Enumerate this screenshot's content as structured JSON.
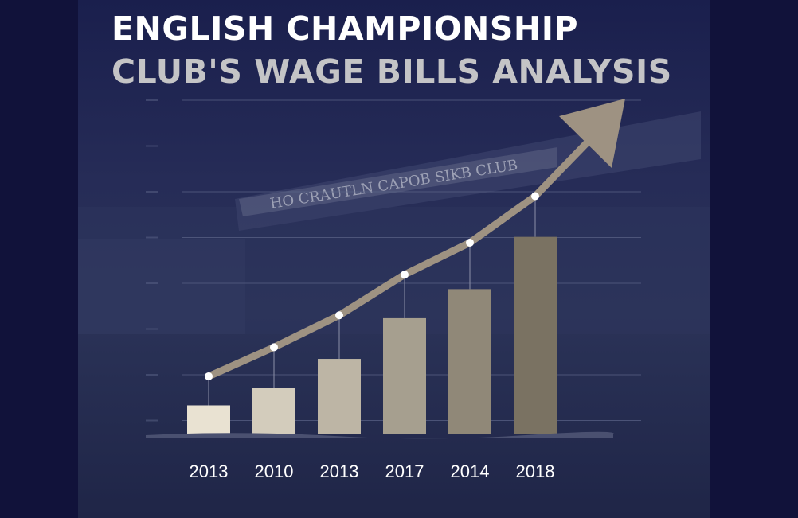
{
  "header": {
    "title": "ENGLISH CHAMPIONSHIP",
    "subtitle": "CLUB'S WAGE BILLS ANALYSIS"
  },
  "background": {
    "stadium_sign": "HO CRAUTLN CAPOB SIKB CLUB"
  },
  "colors": {
    "page": "#11123a",
    "bar_light": "#e9e2d2",
    "bar_dark": "#7a7262",
    "trend_line": "#9e9282",
    "point": "#ffffff",
    "grid": "#5c6488"
  },
  "chart_data": {
    "type": "bar",
    "title": "ENGLISH CHAMPIONSHIP",
    "subtitle": "CLUB'S WAGE BILLS ANALYSIS",
    "categories": [
      "2013",
      "2010",
      "2013",
      "2017",
      "2014",
      "2018"
    ],
    "values": [
      10,
      16,
      26,
      40,
      50,
      68
    ],
    "trend_values": [
      20,
      30,
      41,
      55,
      66,
      82
    ],
    "ylim": [
      0,
      115
    ],
    "grid": true,
    "trend_arrow": true,
    "y_tick_labels_visible": false
  }
}
